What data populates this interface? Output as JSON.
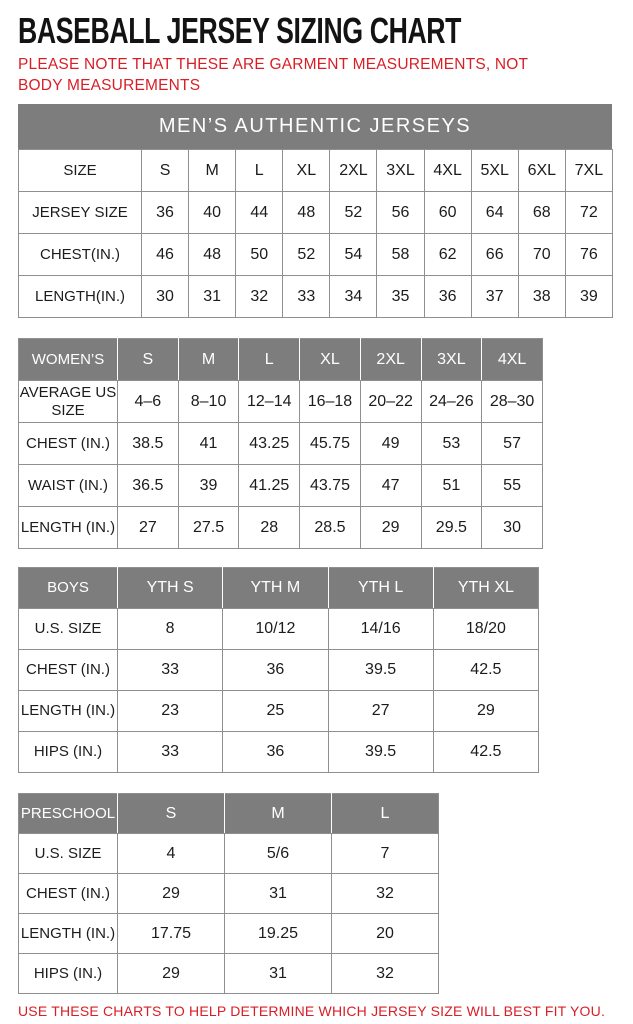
{
  "page": {
    "title": "BASEBALL JERSEY SIZING CHART",
    "note_top": "PLEASE NOTE THAT THESE ARE GARMENT MEASUREMENTS, NOT BODY MEASUREMENTS",
    "note_bottom": "USE THESE CHARTS TO HELP DETERMINE WHICH JERSEY SIZE WILL BEST FIT YOU."
  },
  "colors": {
    "note_red": "#d91e26",
    "header_gray": "#7d7d7d",
    "border_gray": "#8f8f8f",
    "banner_text": "#ffffff"
  },
  "mens_banner": "MEN’S AUTHENTIC JERSEYS",
  "tables": [
    {
      "id": "mens",
      "header": {
        "label": "SIZE",
        "values": [
          "S",
          "M",
          "L",
          "XL",
          "2XL",
          "3XL",
          "4XL",
          "5XL",
          "6XL",
          "7XL"
        ]
      },
      "rows": [
        {
          "label": "JERSEY SIZE",
          "values": [
            "36",
            "40",
            "44",
            "48",
            "52",
            "56",
            "60",
            "64",
            "68",
            "72"
          ]
        },
        {
          "label": "CHEST(IN.)",
          "values": [
            "46",
            "48",
            "50",
            "52",
            "54",
            "58",
            "62",
            "66",
            "70",
            "76"
          ]
        },
        {
          "label": "LENGTH(IN.)",
          "values": [
            "30",
            "31",
            "32",
            "33",
            "34",
            "35",
            "36",
            "37",
            "38",
            "39"
          ]
        }
      ]
    },
    {
      "id": "womens",
      "header": {
        "label": "WOMEN’S",
        "values": [
          "S",
          "M",
          "L",
          "XL",
          "2XL",
          "3XL",
          "4XL"
        ]
      },
      "rows": [
        {
          "label": "AVERAGE US SIZE",
          "values": [
            "4–6",
            "8–10",
            "12–14",
            "16–18",
            "20–22",
            "24–26",
            "28–30"
          ]
        },
        {
          "label": "CHEST (IN.)",
          "values": [
            "38.5",
            "41",
            "43.25",
            "45.75",
            "49",
            "53",
            "57"
          ]
        },
        {
          "label": "WAIST (IN.)",
          "values": [
            "36.5",
            "39",
            "41.25",
            "43.75",
            "47",
            "51",
            "55"
          ]
        },
        {
          "label": "LENGTH (IN.)",
          "values": [
            "27",
            "27.5",
            "28",
            "28.5",
            "29",
            "29.5",
            "30"
          ]
        }
      ]
    },
    {
      "id": "boys",
      "header": {
        "label": "BOYS",
        "values": [
          "YTH S",
          "YTH M",
          "YTH L",
          "YTH XL"
        ]
      },
      "rows": [
        {
          "label": "U.S. SIZE",
          "values": [
            "8",
            "10/12",
            "14/16",
            "18/20"
          ]
        },
        {
          "label": "CHEST (IN.)",
          "values": [
            "33",
            "36",
            "39.5",
            "42.5"
          ]
        },
        {
          "label": "LENGTH (IN.)",
          "values": [
            "23",
            "25",
            "27",
            "29"
          ]
        },
        {
          "label": "HIPS (IN.)",
          "values": [
            "33",
            "36",
            "39.5",
            "42.5"
          ]
        }
      ]
    },
    {
      "id": "preschool",
      "header": {
        "label": "PRESCHOOL",
        "values": [
          "S",
          "M",
          "L"
        ]
      },
      "rows": [
        {
          "label": "U.S. SIZE",
          "values": [
            "4",
            "5/6",
            "7"
          ]
        },
        {
          "label": "CHEST (IN.)",
          "values": [
            "29",
            "31",
            "32"
          ]
        },
        {
          "label": "LENGTH (IN.)",
          "values": [
            "17.75",
            "19.25",
            "20"
          ]
        },
        {
          "label": "HIPS (IN.)",
          "values": [
            "29",
            "31",
            "32"
          ]
        }
      ]
    }
  ]
}
